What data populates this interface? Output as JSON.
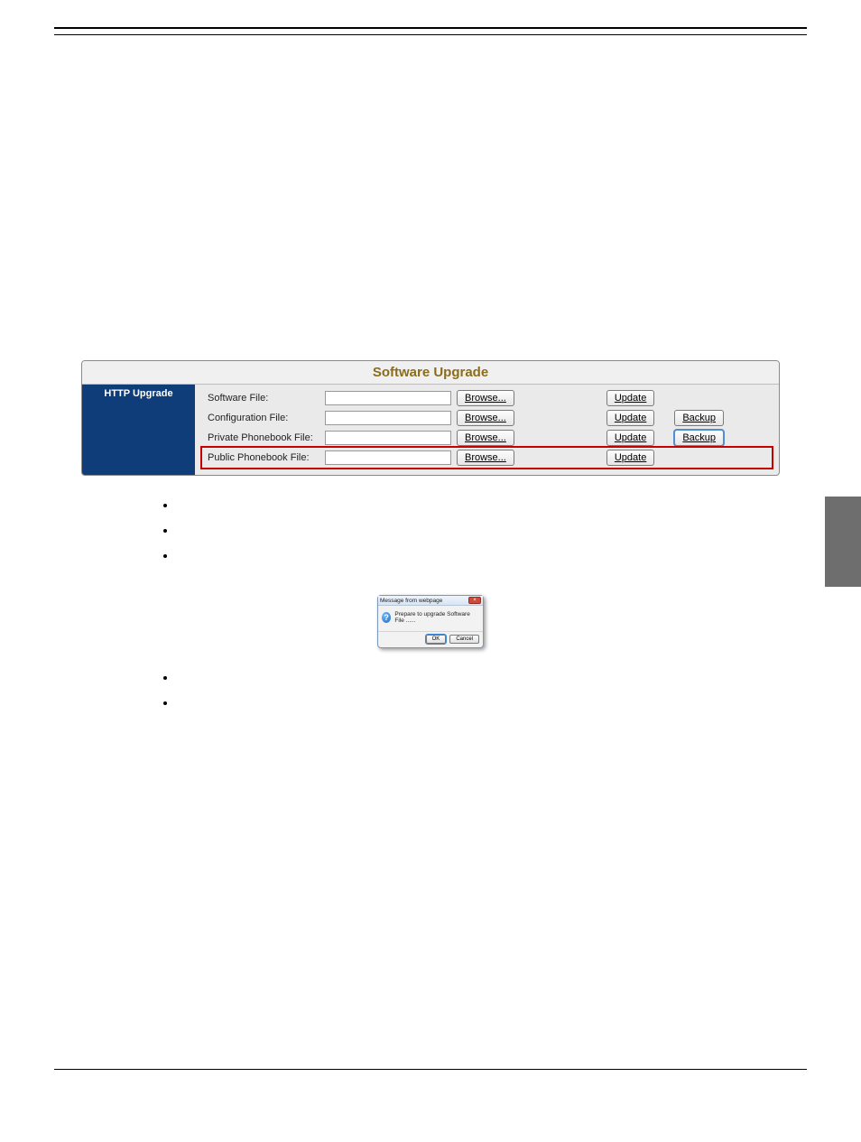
{
  "panel": {
    "title": "Software Upgrade",
    "side_label": "HTTP Upgrade",
    "rows": [
      {
        "label": "Software File:",
        "browse": "Browse...",
        "update": "Update",
        "backup": null,
        "highlight": false,
        "blue": false
      },
      {
        "label": "Configuration File:",
        "browse": "Browse...",
        "update": "Update",
        "backup": "Backup",
        "highlight": false,
        "blue": false
      },
      {
        "label": "Private Phonebook File:",
        "browse": "Browse...",
        "update": "Update",
        "backup": "Backup",
        "highlight": false,
        "blue": true
      },
      {
        "label": "Public Phonebook File:",
        "browse": "Browse...",
        "update": "Update",
        "backup": null,
        "highlight": true,
        "blue": false
      }
    ]
  },
  "bullets_top": [
    "",
    "",
    ""
  ],
  "dialog": {
    "title": "Message from webpage",
    "close": "×",
    "icon": "?",
    "message": "Prepare to upgrade Software File ......",
    "ok": "OK",
    "cancel": "Cancel"
  },
  "bullets_bottom": [
    "",
    ""
  ],
  "colors": {
    "panel_bg": "#eaeaea",
    "panel_title": "#8a6d1a",
    "side_bg": "#0e3d7a",
    "highlight_border": "#c70000",
    "blue_outline": "#4d8fd6",
    "dlg_border": "#7b99b9",
    "dlg_close_bg": "#d04a3a",
    "side_tab_bg": "#6e6e6e"
  }
}
